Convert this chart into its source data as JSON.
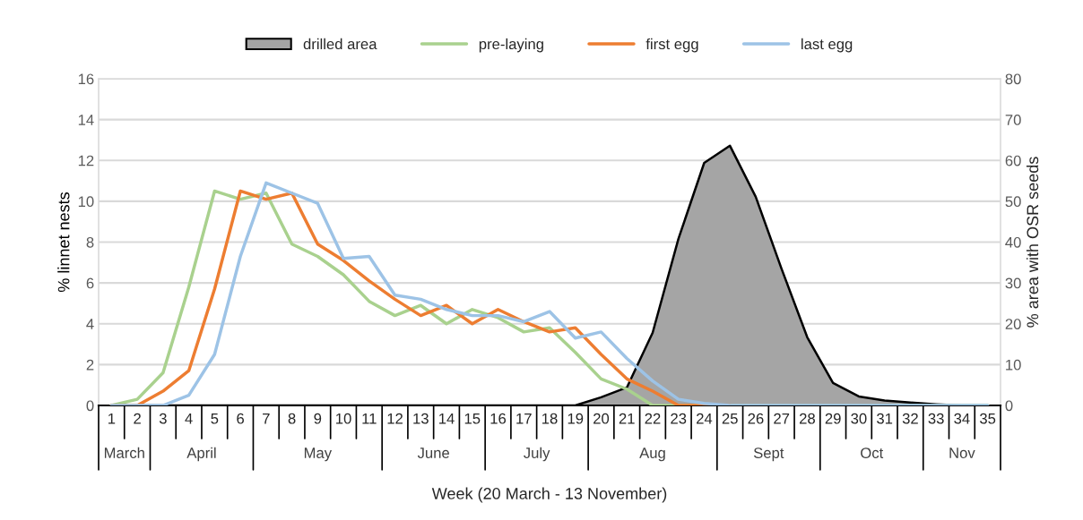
{
  "chart_data": {
    "type": "line",
    "xlabel": "Week (20 March - 13 November)",
    "ylabel": "% linnet nests",
    "y2label": "% area with OSR seeds",
    "categories": [
      "1",
      "2",
      "3",
      "4",
      "5",
      "6",
      "7",
      "8",
      "9",
      "10",
      "11",
      "12",
      "13",
      "14",
      "15",
      "16",
      "17",
      "18",
      "19",
      "20",
      "21",
      "22",
      "23",
      "24",
      "25",
      "26",
      "27",
      "28",
      "29",
      "30",
      "31",
      "32",
      "33",
      "34",
      "35"
    ],
    "series": [
      {
        "name": "drilled area",
        "type": "area",
        "axis": "y2",
        "color": "#a5a5a5",
        "values": [
          0,
          0,
          0,
          0,
          0,
          0,
          0,
          0,
          0,
          0,
          0,
          0,
          0,
          0,
          0,
          0,
          0,
          0,
          0,
          2,
          4.4,
          17.8,
          40.8,
          59.4,
          63.6,
          51.1,
          33.5,
          16.7,
          5.5,
          2.2,
          1.2,
          0.7,
          0.3,
          0,
          0
        ]
      },
      {
        "name": "pre-laying",
        "color": "#a9d18e",
        "values": [
          0,
          0.3,
          1.6,
          5.8,
          10.5,
          10.1,
          10.4,
          7.9,
          7.3,
          6.4,
          5.1,
          4.4,
          4.9,
          4.0,
          4.7,
          4.3,
          3.6,
          3.8,
          2.6,
          1.3,
          0.8,
          0,
          0,
          0,
          0,
          0,
          0,
          0,
          0,
          0,
          0,
          0,
          0,
          0,
          0
        ]
      },
      {
        "name": "first egg",
        "color": "#ed7d31",
        "values": [
          0,
          0,
          0.7,
          1.7,
          5.7,
          10.5,
          10.1,
          10.4,
          7.9,
          7.1,
          6.1,
          5.2,
          4.4,
          4.9,
          4.0,
          4.7,
          4.1,
          3.6,
          3.8,
          2.5,
          1.3,
          0.7,
          0,
          0,
          0,
          null,
          null,
          null,
          null,
          null,
          null,
          null,
          null,
          null,
          null
        ]
      },
      {
        "name": "last egg",
        "color": "#9dc3e6",
        "values": [
          0,
          0,
          0,
          0.5,
          2.5,
          7.3,
          10.9,
          10.4,
          9.9,
          7.2,
          7.3,
          5.4,
          5.2,
          4.7,
          4.4,
          4.4,
          4.1,
          4.6,
          3.3,
          3.6,
          2.3,
          1.2,
          0.3,
          0.1,
          0,
          0,
          0,
          0,
          0,
          0,
          0,
          0,
          0,
          0,
          0
        ]
      }
    ],
    "ylim": [
      0,
      16
    ],
    "yticks": [
      0,
      2,
      4,
      6,
      8,
      10,
      12,
      14,
      16
    ],
    "y2lim": [
      0,
      80
    ],
    "y2ticks": [
      0,
      10,
      20,
      30,
      40,
      50,
      60,
      70,
      80
    ],
    "grid": "y",
    "legend": "top",
    "marker": "none",
    "line_style": "solid",
    "annotations": [
      "March",
      "April",
      "May",
      "June",
      "July",
      "Aug",
      "Sept",
      "Oct",
      "Nov"
    ]
  }
}
